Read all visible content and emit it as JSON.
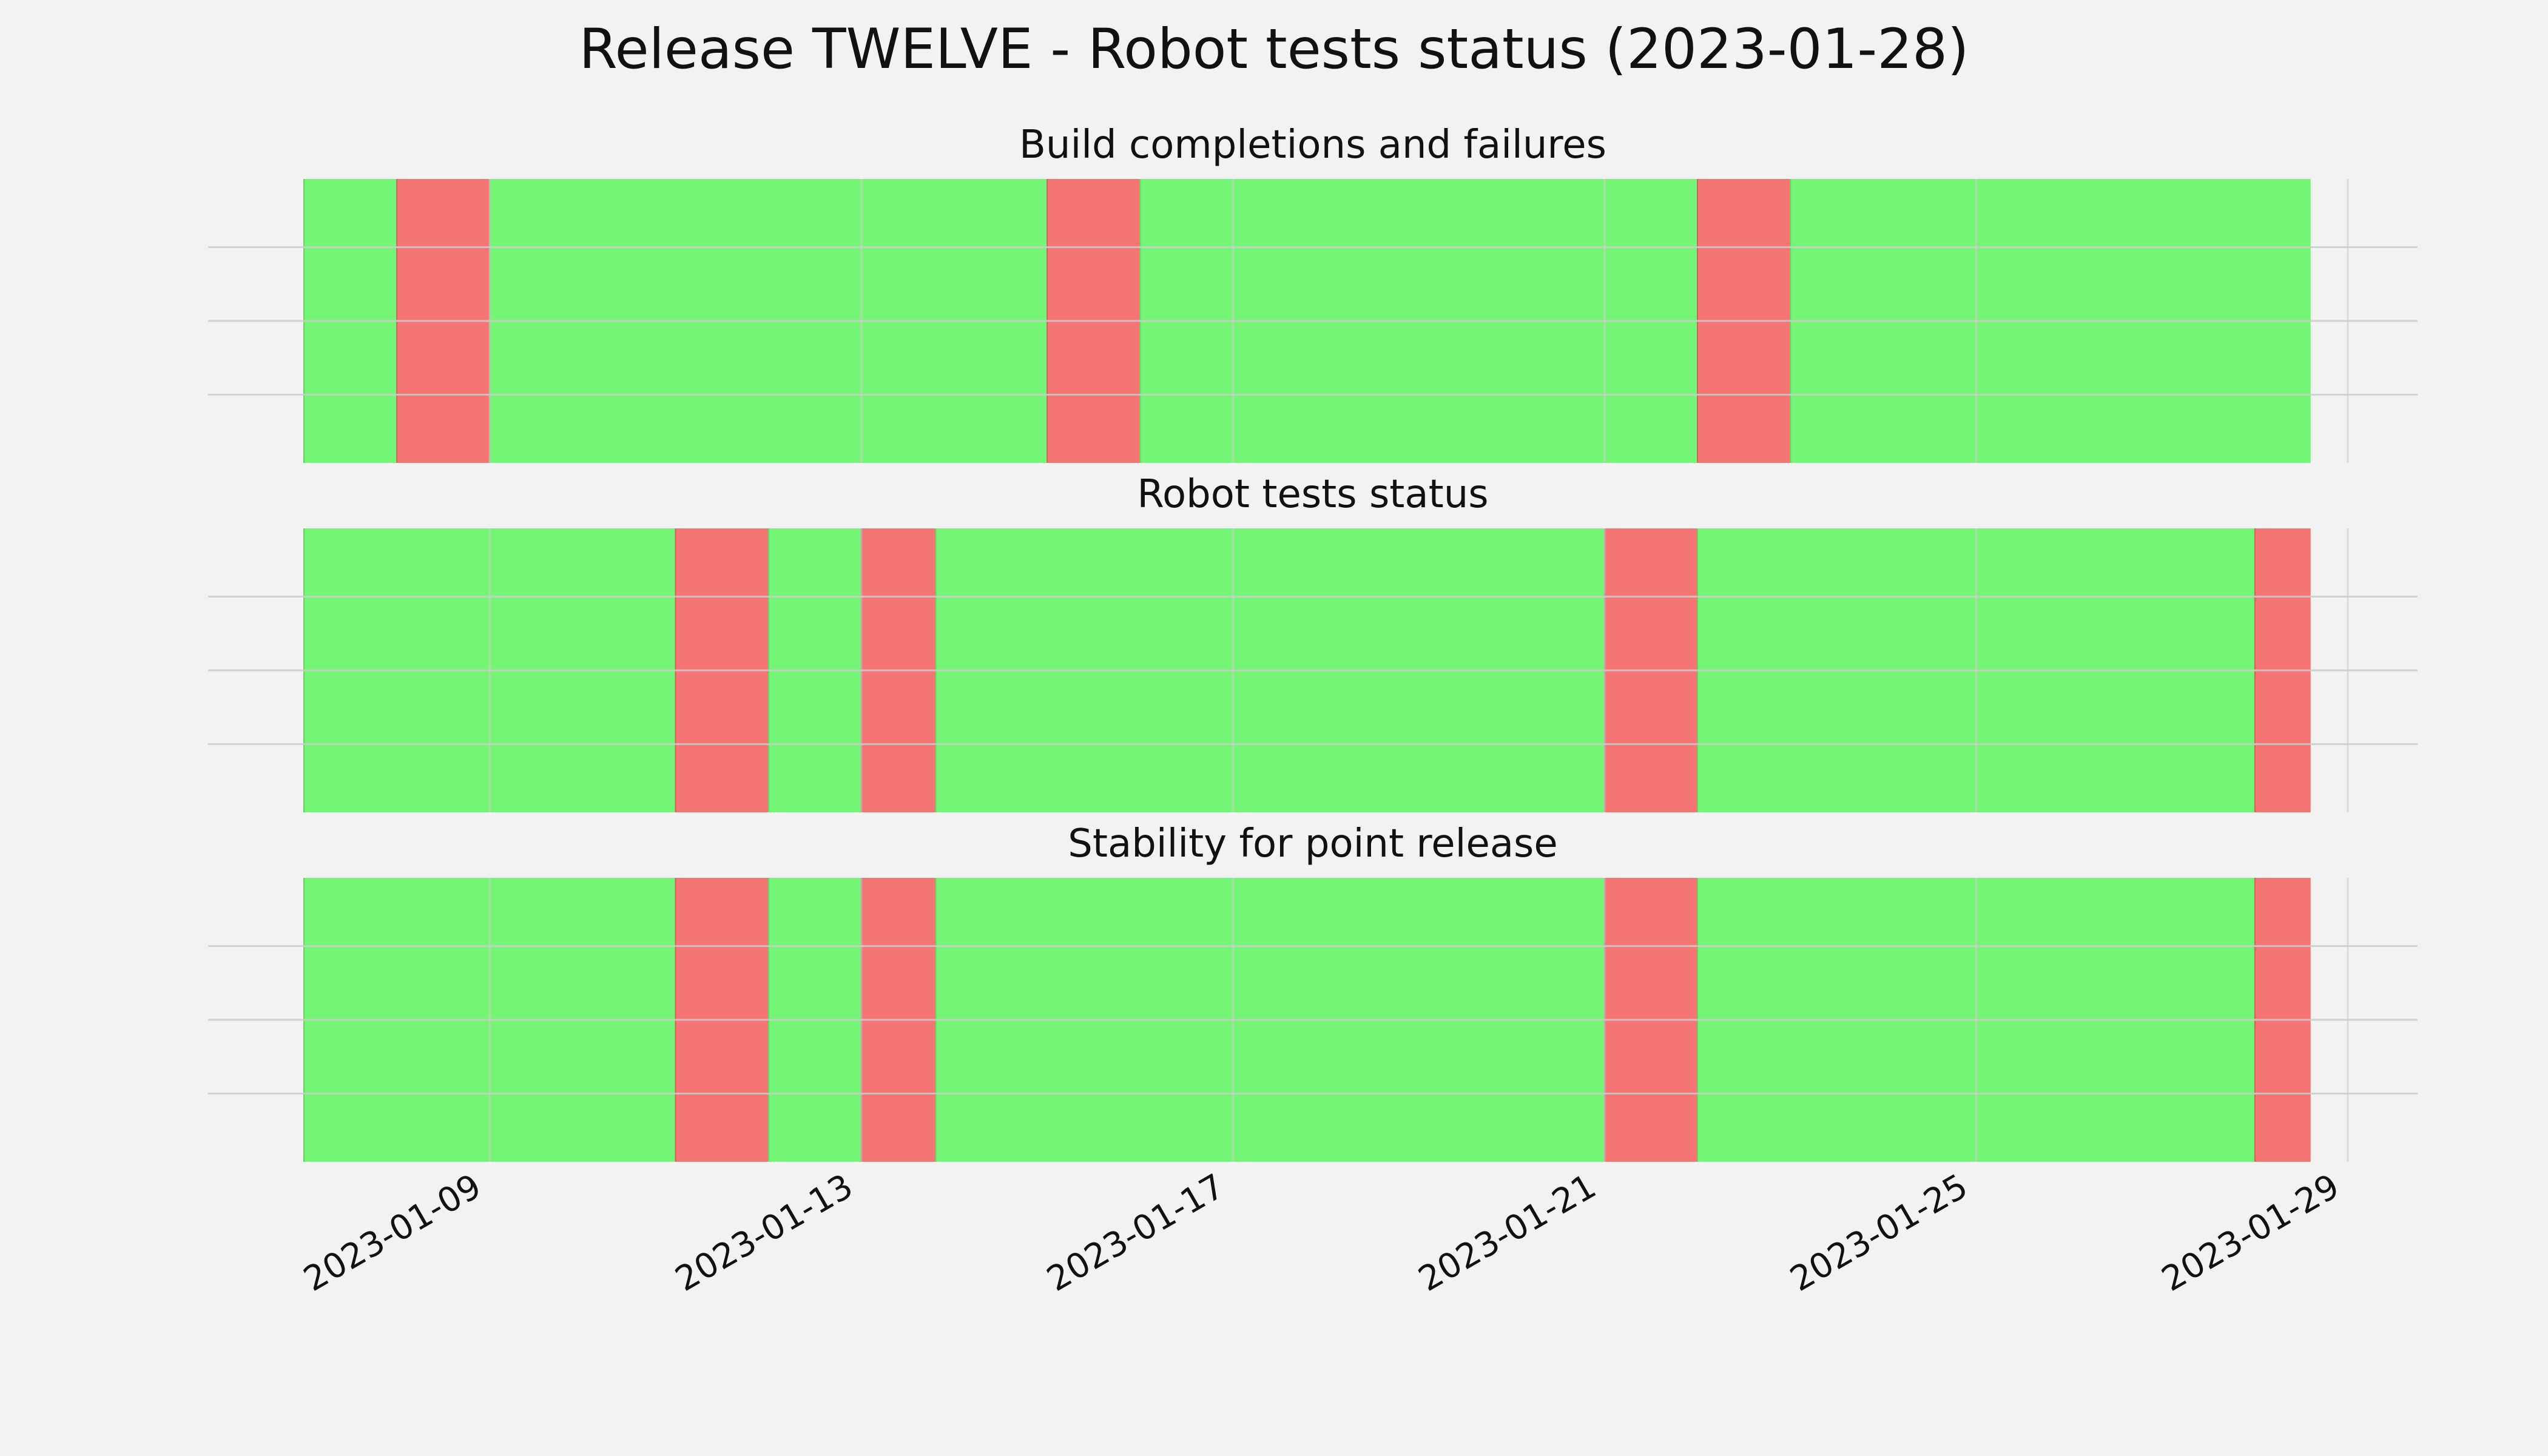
{
  "chart_data": {
    "type": "timeline",
    "title": "Release TWELVE - Robot tests status (2023-01-28)",
    "x_axis": {
      "range": [
        "2023-01-07",
        "2023-01-29"
      ],
      "ticks": [
        "2023-01-09",
        "2023-01-13",
        "2023-01-17",
        "2023-01-21",
        "2023-01-25",
        "2023-01-29"
      ]
    },
    "grid": true,
    "colors": {
      "pass": "#75f575",
      "fail": "#f57575",
      "background": "#f2f2f2",
      "grid": "#cbcbcb"
    },
    "panels": [
      {
        "title": "Build completions and failures",
        "segments": [
          {
            "start": "2023-01-07",
            "end": "2023-01-08",
            "status": "pass"
          },
          {
            "start": "2023-01-08",
            "end": "2023-01-09",
            "status": "fail"
          },
          {
            "start": "2023-01-09",
            "end": "2023-01-15",
            "status": "pass"
          },
          {
            "start": "2023-01-15",
            "end": "2023-01-16",
            "status": "fail"
          },
          {
            "start": "2023-01-16",
            "end": "2023-01-22",
            "status": "pass"
          },
          {
            "start": "2023-01-22",
            "end": "2023-01-23",
            "status": "fail"
          },
          {
            "start": "2023-01-23",
            "end": "2023-01-28.6",
            "status": "pass"
          }
        ]
      },
      {
        "title": "Robot tests status",
        "segments": [
          {
            "start": "2023-01-07",
            "end": "2023-01-11",
            "status": "pass"
          },
          {
            "start": "2023-01-11",
            "end": "2023-01-12",
            "status": "fail"
          },
          {
            "start": "2023-01-12",
            "end": "2023-01-13",
            "status": "pass"
          },
          {
            "start": "2023-01-13",
            "end": "2023-01-13.8",
            "status": "fail"
          },
          {
            "start": "2023-01-13.8",
            "end": "2023-01-21",
            "status": "pass"
          },
          {
            "start": "2023-01-21",
            "end": "2023-01-22",
            "status": "fail"
          },
          {
            "start": "2023-01-22",
            "end": "2023-01-28",
            "status": "pass"
          },
          {
            "start": "2023-01-28",
            "end": "2023-01-28.6",
            "status": "fail"
          }
        ]
      },
      {
        "title": "Stability for point release",
        "segments": [
          {
            "start": "2023-01-07",
            "end": "2023-01-11",
            "status": "pass"
          },
          {
            "start": "2023-01-11",
            "end": "2023-01-12",
            "status": "fail"
          },
          {
            "start": "2023-01-12",
            "end": "2023-01-13",
            "status": "pass"
          },
          {
            "start": "2023-01-13",
            "end": "2023-01-13.8",
            "status": "fail"
          },
          {
            "start": "2023-01-13.8",
            "end": "2023-01-21",
            "status": "pass"
          },
          {
            "start": "2023-01-21",
            "end": "2023-01-22",
            "status": "fail"
          },
          {
            "start": "2023-01-22",
            "end": "2023-01-28",
            "status": "pass"
          },
          {
            "start": "2023-01-28",
            "end": "2023-01-28.6",
            "status": "fail"
          }
        ]
      }
    ]
  }
}
